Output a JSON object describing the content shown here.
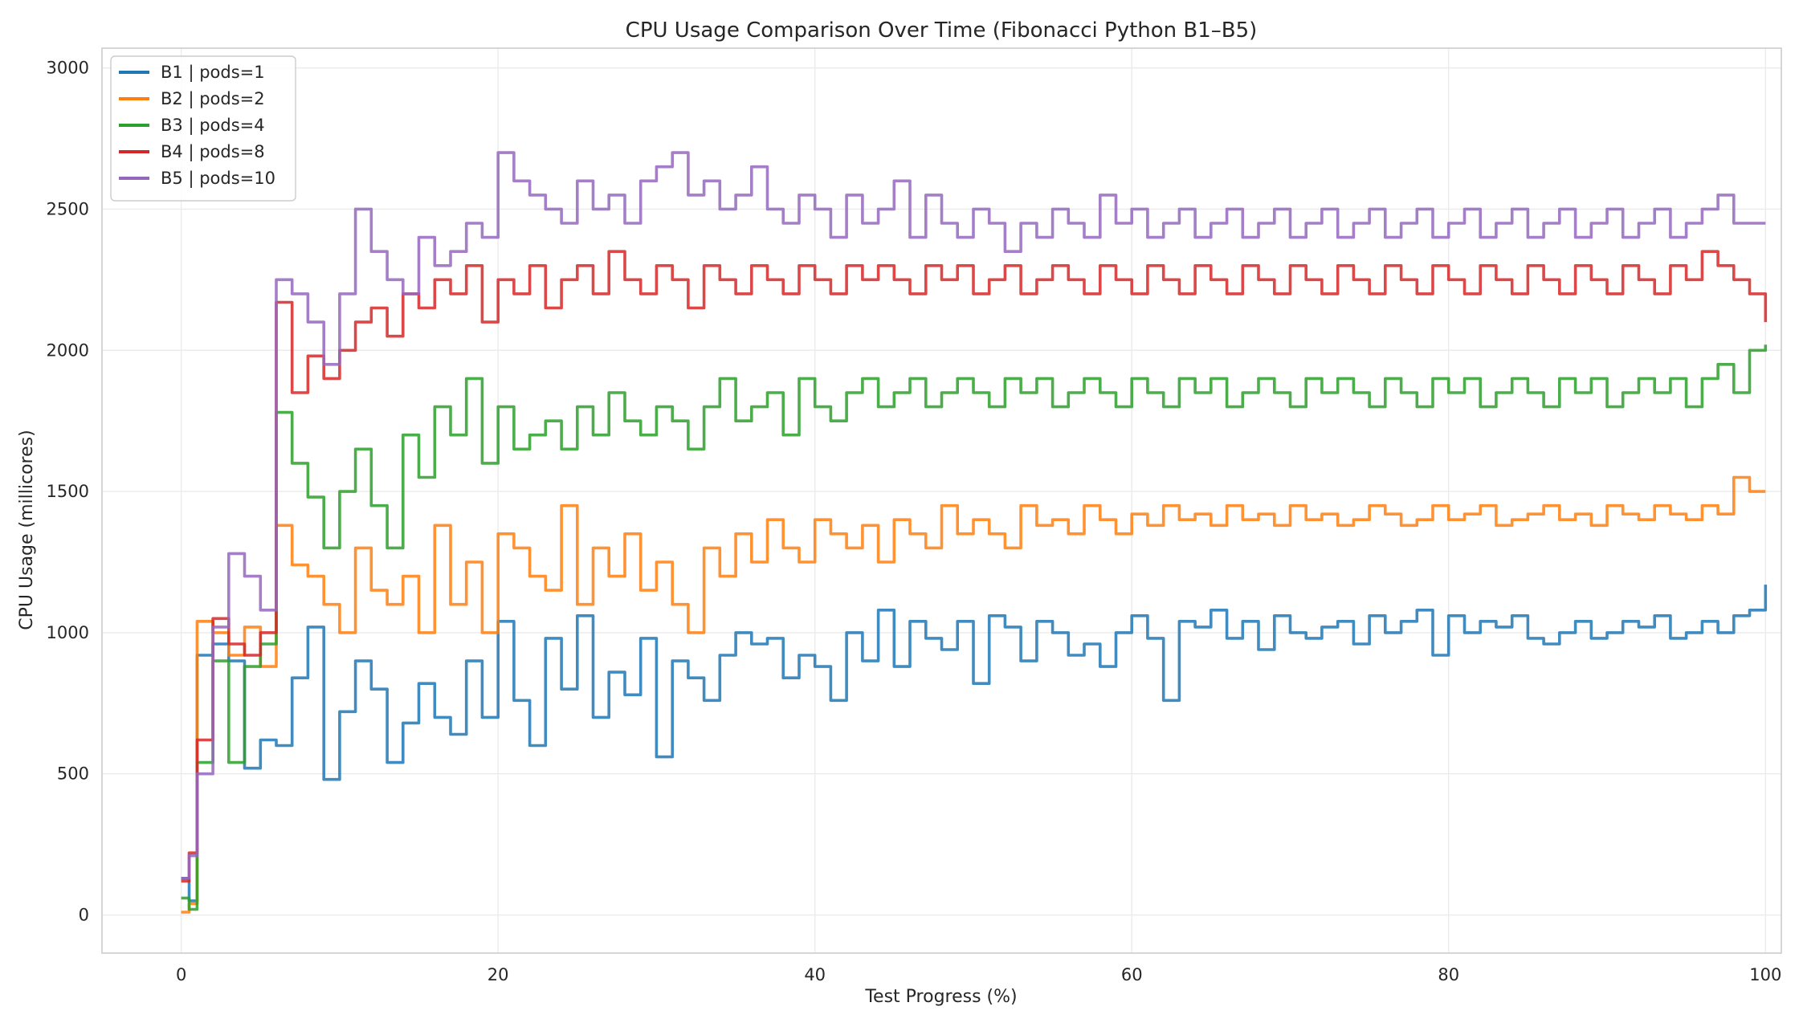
{
  "chart_data": {
    "type": "line",
    "title": "CPU Usage Comparison Over Time (Fibonacci Python B1–B5)",
    "xlabel": "Test Progress (%)",
    "ylabel": "CPU Usage (millicores)",
    "xlim": [
      -5,
      101
    ],
    "ylim": [
      -135,
      3070
    ],
    "xticks": [
      0,
      20,
      40,
      60,
      80,
      100
    ],
    "yticks": [
      0,
      500,
      1000,
      1500,
      2000,
      2500,
      3000
    ],
    "xtick_labels": [
      "0",
      "20",
      "40",
      "60",
      "80",
      "100"
    ],
    "ytick_labels": [
      "0",
      "500",
      "1000",
      "1500",
      "2000",
      "2500",
      "3000"
    ],
    "grid": true,
    "legend_position": "top-left",
    "step": true,
    "series": [
      {
        "name": "B1 | pods=1",
        "color": "#1f77b4",
        "x": [
          0,
          0.5,
          1,
          2,
          3,
          4,
          5,
          6,
          7,
          8,
          9,
          10,
          11,
          12,
          13,
          14,
          15,
          16,
          17,
          18,
          19,
          20,
          21,
          22,
          23,
          24,
          25,
          26,
          27,
          28,
          29,
          30,
          31,
          32,
          33,
          34,
          35,
          36,
          37,
          38,
          39,
          40,
          41,
          42,
          43,
          44,
          45,
          46,
          47,
          48,
          49,
          50,
          51,
          52,
          53,
          54,
          55,
          56,
          57,
          58,
          59,
          60,
          61,
          62,
          63,
          64,
          65,
          66,
          67,
          68,
          69,
          70,
          71,
          72,
          73,
          74,
          75,
          76,
          77,
          78,
          79,
          80,
          81,
          82,
          83,
          84,
          85,
          86,
          87,
          88,
          89,
          90,
          91,
          92,
          93,
          94,
          95,
          96,
          97,
          98,
          99,
          100
        ],
        "y": [
          130,
          50,
          920,
          960,
          900,
          520,
          620,
          600,
          840,
          1020,
          480,
          720,
          900,
          800,
          540,
          680,
          820,
          700,
          640,
          900,
          700,
          1040,
          760,
          600,
          980,
          800,
          1060,
          700,
          860,
          780,
          980,
          560,
          900,
          840,
          760,
          920,
          1000,
          960,
          980,
          840,
          920,
          880,
          760,
          1000,
          900,
          1080,
          880,
          1040,
          980,
          940,
          1040,
          820,
          1060,
          1020,
          900,
          1040,
          1000,
          920,
          960,
          880,
          1000,
          1060,
          980,
          760,
          1040,
          1020,
          1080,
          980,
          1040,
          940,
          1060,
          1000,
          980,
          1020,
          1040,
          960,
          1060,
          1000,
          1040,
          1080,
          920,
          1060,
          1000,
          1040,
          1020,
          1060,
          980,
          960,
          1000,
          1040,
          980,
          1000,
          1040,
          1020,
          1060,
          980,
          1000,
          1040,
          1000,
          1060,
          1080,
          1170
        ]
      },
      {
        "name": "B2 | pods=2",
        "color": "#ff7f0e",
        "x": [
          0,
          0.5,
          1,
          2,
          3,
          4,
          5,
          6,
          7,
          8,
          9,
          10,
          11,
          12,
          13,
          14,
          15,
          16,
          17,
          18,
          19,
          20,
          21,
          22,
          23,
          24,
          25,
          26,
          27,
          28,
          29,
          30,
          31,
          32,
          33,
          34,
          35,
          36,
          37,
          38,
          39,
          40,
          41,
          42,
          43,
          44,
          45,
          46,
          47,
          48,
          49,
          50,
          51,
          52,
          53,
          54,
          55,
          56,
          57,
          58,
          59,
          60,
          61,
          62,
          63,
          64,
          65,
          66,
          67,
          68,
          69,
          70,
          71,
          72,
          73,
          74,
          75,
          76,
          77,
          78,
          79,
          80,
          81,
          82,
          83,
          84,
          85,
          86,
          87,
          88,
          89,
          90,
          91,
          92,
          93,
          94,
          95,
          96,
          97,
          98,
          99,
          100
        ],
        "y": [
          10,
          40,
          1040,
          1000,
          920,
          1020,
          880,
          1380,
          1240,
          1200,
          1100,
          1000,
          1300,
          1150,
          1100,
          1200,
          1000,
          1380,
          1100,
          1250,
          1000,
          1350,
          1300,
          1200,
          1150,
          1450,
          1100,
          1300,
          1200,
          1350,
          1150,
          1250,
          1100,
          1000,
          1300,
          1200,
          1350,
          1250,
          1400,
          1300,
          1250,
          1400,
          1350,
          1300,
          1380,
          1250,
          1400,
          1350,
          1300,
          1450,
          1350,
          1400,
          1350,
          1300,
          1450,
          1380,
          1400,
          1350,
          1450,
          1400,
          1350,
          1420,
          1380,
          1450,
          1400,
          1420,
          1380,
          1450,
          1400,
          1420,
          1380,
          1450,
          1400,
          1420,
          1380,
          1400,
          1450,
          1420,
          1380,
          1400,
          1450,
          1400,
          1420,
          1450,
          1380,
          1400,
          1420,
          1450,
          1400,
          1420,
          1380,
          1450,
          1420,
          1400,
          1450,
          1420,
          1400,
          1450,
          1420,
          1550,
          1500,
          1500
        ]
      },
      {
        "name": "B3 | pods=4",
        "color": "#2ca02c",
        "x": [
          0,
          0.5,
          1,
          2,
          3,
          4,
          5,
          6,
          7,
          8,
          9,
          10,
          11,
          12,
          13,
          14,
          15,
          16,
          17,
          18,
          19,
          20,
          21,
          22,
          23,
          24,
          25,
          26,
          27,
          28,
          29,
          30,
          31,
          32,
          33,
          34,
          35,
          36,
          37,
          38,
          39,
          40,
          41,
          42,
          43,
          44,
          45,
          46,
          47,
          48,
          49,
          50,
          51,
          52,
          53,
          54,
          55,
          56,
          57,
          58,
          59,
          60,
          61,
          62,
          63,
          64,
          65,
          66,
          67,
          68,
          69,
          70,
          71,
          72,
          73,
          74,
          75,
          76,
          77,
          78,
          79,
          80,
          81,
          82,
          83,
          84,
          85,
          86,
          87,
          88,
          89,
          90,
          91,
          92,
          93,
          94,
          95,
          96,
          97,
          98,
          99,
          100
        ],
        "y": [
          60,
          20,
          540,
          900,
          540,
          880,
          960,
          1780,
          1600,
          1480,
          1300,
          1500,
          1650,
          1450,
          1300,
          1700,
          1550,
          1800,
          1700,
          1900,
          1600,
          1800,
          1650,
          1700,
          1750,
          1650,
          1800,
          1700,
          1850,
          1750,
          1700,
          1800,
          1750,
          1650,
          1800,
          1900,
          1750,
          1800,
          1850,
          1700,
          1900,
          1800,
          1750,
          1850,
          1900,
          1800,
          1850,
          1900,
          1800,
          1850,
          1900,
          1850,
          1800,
          1900,
          1850,
          1900,
          1800,
          1850,
          1900,
          1850,
          1800,
          1900,
          1850,
          1800,
          1900,
          1850,
          1900,
          1800,
          1850,
          1900,
          1850,
          1800,
          1900,
          1850,
          1900,
          1850,
          1800,
          1900,
          1850,
          1800,
          1900,
          1850,
          1900,
          1800,
          1850,
          1900,
          1850,
          1800,
          1900,
          1850,
          1900,
          1800,
          1850,
          1900,
          1850,
          1900,
          1800,
          1900,
          1950,
          1850,
          2000,
          2020
        ]
      },
      {
        "name": "B4 | pods=8",
        "color": "#d62728",
        "x": [
          0,
          0.5,
          1,
          2,
          3,
          4,
          5,
          6,
          7,
          8,
          9,
          10,
          11,
          12,
          13,
          14,
          15,
          16,
          17,
          18,
          19,
          20,
          21,
          22,
          23,
          24,
          25,
          26,
          27,
          28,
          29,
          30,
          31,
          32,
          33,
          34,
          35,
          36,
          37,
          38,
          39,
          40,
          41,
          42,
          43,
          44,
          45,
          46,
          47,
          48,
          49,
          50,
          51,
          52,
          53,
          54,
          55,
          56,
          57,
          58,
          59,
          60,
          61,
          62,
          63,
          64,
          65,
          66,
          67,
          68,
          69,
          70,
          71,
          72,
          73,
          74,
          75,
          76,
          77,
          78,
          79,
          80,
          81,
          82,
          83,
          84,
          85,
          86,
          87,
          88,
          89,
          90,
          91,
          92,
          93,
          94,
          95,
          96,
          97,
          98,
          99,
          100
        ],
        "y": [
          120,
          220,
          620,
          1050,
          960,
          920,
          1000,
          2170,
          1850,
          1980,
          1900,
          2000,
          2100,
          2150,
          2050,
          2200,
          2150,
          2250,
          2200,
          2300,
          2100,
          2250,
          2200,
          2300,
          2150,
          2250,
          2300,
          2200,
          2350,
          2250,
          2200,
          2300,
          2250,
          2150,
          2300,
          2250,
          2200,
          2300,
          2250,
          2200,
          2300,
          2250,
          2200,
          2300,
          2250,
          2300,
          2250,
          2200,
          2300,
          2250,
          2300,
          2200,
          2250,
          2300,
          2200,
          2250,
          2300,
          2250,
          2200,
          2300,
          2250,
          2200,
          2300,
          2250,
          2200,
          2300,
          2250,
          2200,
          2300,
          2250,
          2200,
          2300,
          2250,
          2200,
          2300,
          2250,
          2200,
          2300,
          2250,
          2200,
          2300,
          2250,
          2200,
          2300,
          2250,
          2200,
          2300,
          2250,
          2200,
          2300,
          2250,
          2200,
          2300,
          2250,
          2200,
          2300,
          2250,
          2350,
          2300,
          2250,
          2200,
          2100
        ]
      },
      {
        "name": "B5 | pods=10",
        "color": "#9467bd",
        "x": [
          0,
          0.5,
          1,
          2,
          3,
          4,
          5,
          6,
          7,
          8,
          9,
          10,
          11,
          12,
          13,
          14,
          15,
          16,
          17,
          18,
          19,
          20,
          21,
          22,
          23,
          24,
          25,
          26,
          27,
          28,
          29,
          30,
          31,
          32,
          33,
          34,
          35,
          36,
          37,
          38,
          39,
          40,
          41,
          42,
          43,
          44,
          45,
          46,
          47,
          48,
          49,
          50,
          51,
          52,
          53,
          54,
          55,
          56,
          57,
          58,
          59,
          60,
          61,
          62,
          63,
          64,
          65,
          66,
          67,
          68,
          69,
          70,
          71,
          72,
          73,
          74,
          75,
          76,
          77,
          78,
          79,
          80,
          81,
          82,
          83,
          84,
          85,
          86,
          87,
          88,
          89,
          90,
          91,
          92,
          93,
          94,
          95,
          96,
          97,
          98,
          99,
          100
        ],
        "y": [
          130,
          210,
          500,
          1020,
          1280,
          1200,
          1080,
          2250,
          2200,
          2100,
          1950,
          2200,
          2500,
          2350,
          2250,
          2200,
          2400,
          2300,
          2350,
          2450,
          2400,
          2700,
          2600,
          2550,
          2500,
          2450,
          2600,
          2500,
          2550,
          2450,
          2600,
          2650,
          2700,
          2550,
          2600,
          2500,
          2550,
          2650,
          2500,
          2450,
          2550,
          2500,
          2400,
          2550,
          2450,
          2500,
          2600,
          2400,
          2550,
          2450,
          2400,
          2500,
          2450,
          2350,
          2450,
          2400,
          2500,
          2450,
          2400,
          2550,
          2450,
          2500,
          2400,
          2450,
          2500,
          2400,
          2450,
          2500,
          2400,
          2450,
          2500,
          2400,
          2450,
          2500,
          2400,
          2450,
          2500,
          2400,
          2450,
          2500,
          2400,
          2450,
          2500,
          2400,
          2450,
          2500,
          2400,
          2450,
          2500,
          2400,
          2450,
          2500,
          2400,
          2450,
          2500,
          2400,
          2450,
          2500,
          2550,
          2450,
          2450,
          2450
        ]
      }
    ]
  }
}
